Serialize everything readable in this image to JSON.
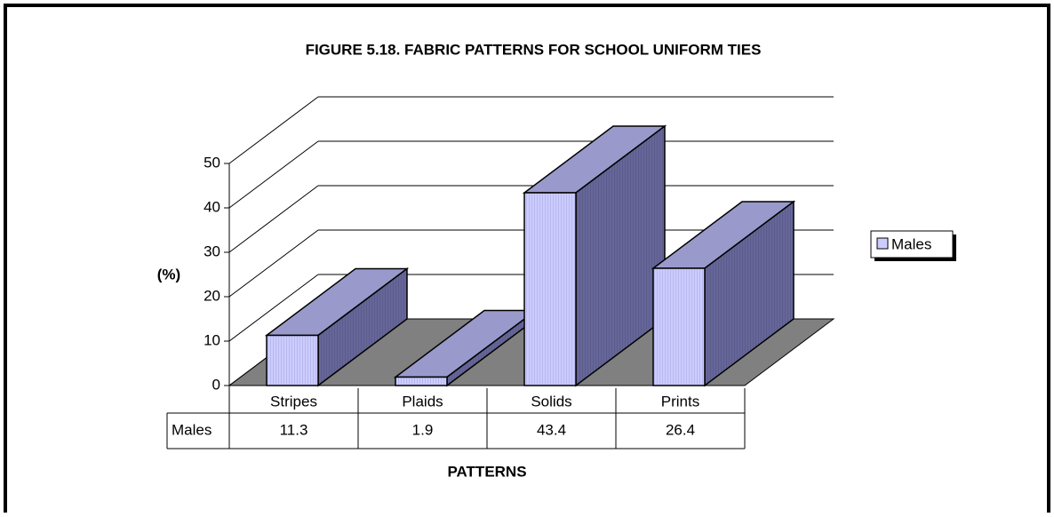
{
  "chart_data": {
    "type": "bar3d",
    "title": "FIGURE 5.18.   FABRIC PATTERNS FOR SCHOOL UNIFORM TIES",
    "y_label": "(%)",
    "x_label": "PATTERNS",
    "categories": [
      "Stripes",
      "Plaids",
      "Solids",
      "Prints"
    ],
    "series": [
      {
        "name": "Males",
        "color": "#ccccff",
        "values": [
          11.3,
          1.9,
          43.4,
          26.4
        ]
      }
    ],
    "ylim": [
      0,
      50
    ],
    "yticks": [
      0,
      10,
      20,
      30,
      40,
      50
    ],
    "grid": true,
    "legend": "right",
    "data_table": true
  }
}
